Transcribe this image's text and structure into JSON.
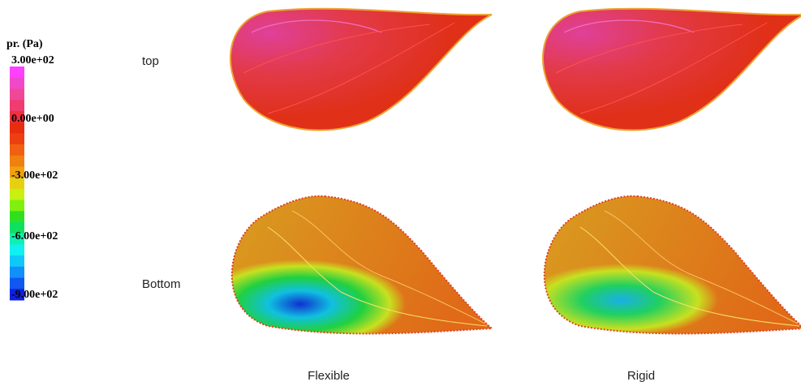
{
  "legend": {
    "title": "pr. (Pa)",
    "labels": [
      "3.00e+02",
      "0.00e+00",
      "-3.00e+02",
      "-6.00e+02",
      "-9.00e+02"
    ]
  },
  "rows": [
    "top",
    "Bottom"
  ],
  "columns": [
    "Flexible",
    "Rigid"
  ]
}
